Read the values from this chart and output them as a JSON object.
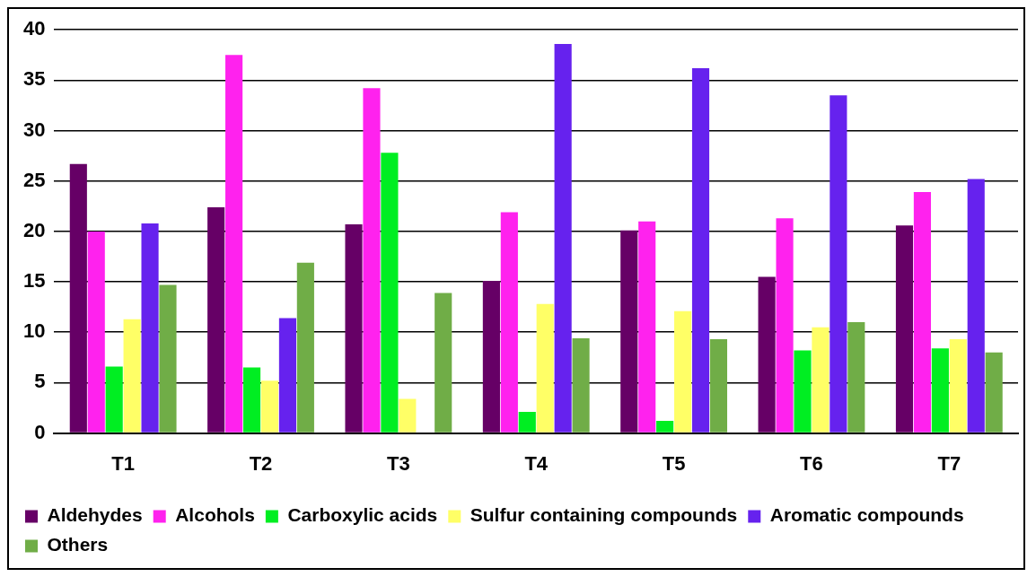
{
  "chart_data": {
    "type": "bar",
    "categories": [
      "T1",
      "T2",
      "T3",
      "T4",
      "T5",
      "T6",
      "T7"
    ],
    "series": [
      {
        "name": "Aldehydes",
        "color": "#660066",
        "values": [
          26.7,
          22.4,
          20.7,
          15.1,
          20.1,
          15.5,
          20.6
        ]
      },
      {
        "name": "Alcohols",
        "color": "#ff22ee",
        "values": [
          20.0,
          37.5,
          34.2,
          21.9,
          21.0,
          21.3,
          23.9
        ]
      },
      {
        "name": "Carboxylic acids",
        "color": "#00ee22",
        "values": [
          6.6,
          6.5,
          27.8,
          2.1,
          1.2,
          8.2,
          8.4
        ]
      },
      {
        "name": "Sulfur containing compounds",
        "color": "#ffff66",
        "values": [
          11.3,
          5.2,
          3.4,
          12.8,
          12.1,
          10.5,
          9.3
        ]
      },
      {
        "name": "Aromatic compounds",
        "color": "#6622ee",
        "values": [
          20.8,
          11.4,
          0,
          38.6,
          36.2,
          33.5,
          25.2
        ]
      },
      {
        "name": "Others",
        "color": "#70ad47",
        "values": [
          14.7,
          16.9,
          13.9,
          9.4,
          9.3,
          11.0,
          8.0
        ]
      }
    ],
    "ylim": [
      0,
      40
    ],
    "yticks": [
      0,
      5,
      10,
      15,
      20,
      25,
      30,
      35,
      40
    ],
    "grid": "y",
    "legend": "bottom"
  }
}
